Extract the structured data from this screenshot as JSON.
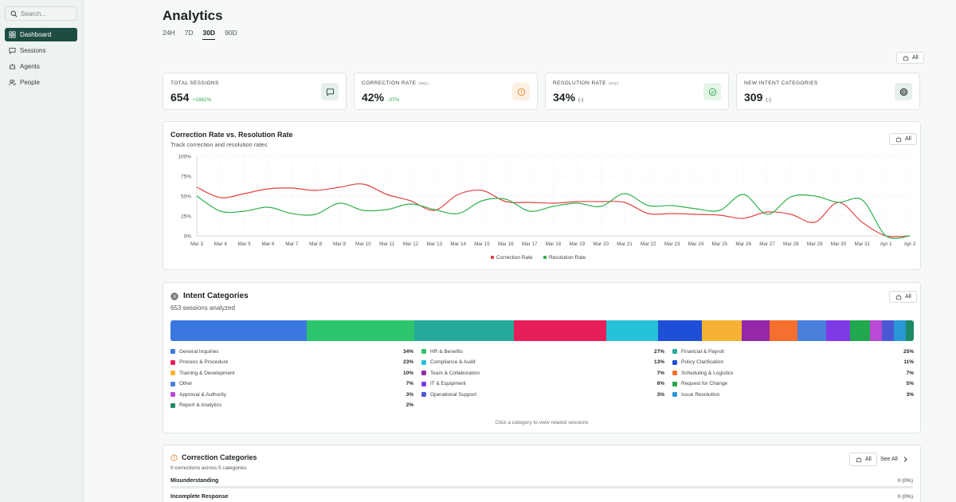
{
  "sidebar": {
    "search_placeholder": "Search...",
    "items": [
      {
        "label": "Dashboard",
        "icon": "grid-icon",
        "active": true
      },
      {
        "label": "Sessions",
        "icon": "chat-icon",
        "active": false
      },
      {
        "label": "Agents",
        "icon": "bot-icon",
        "active": false
      },
      {
        "label": "People",
        "icon": "users-icon",
        "active": false
      }
    ]
  },
  "header": {
    "title": "Analytics",
    "ranges": [
      "24H",
      "7D",
      "30D",
      "90D"
    ],
    "active_range": "30D",
    "filter_label": "All"
  },
  "kpis": [
    {
      "label": "TOTAL SESSIONS",
      "avg": "",
      "value": "654",
      "delta": "+1882%",
      "delta_color": "#2fa84f",
      "icon": "message-icon",
      "icon_bg": "#e6efec",
      "icon_color": "#2c4a42"
    },
    {
      "label": "CORRECTION RATE",
      "avg": "(avg.)",
      "value": "42%",
      "delta": "-37%",
      "delta_color": "#2fa84f",
      "icon": "alert-circle-icon",
      "icon_bg": "#fdf0e2",
      "icon_color": "#e08a2c"
    },
    {
      "label": "RESOLUTION RATE",
      "avg": "(avg.)",
      "value": "34%",
      "delta": "(-)",
      "delta_color": "#3b4743",
      "icon": "check-circle-icon",
      "icon_bg": "#e5f4e8",
      "icon_color": "#2fa84f"
    },
    {
      "label": "NEW INTENT CATEGORIES",
      "avg": "",
      "value": "309",
      "delta": "(-)",
      "delta_color": "#3b4743",
      "icon": "target-icon",
      "icon_bg": "#e6efec",
      "icon_color": "#1a2421"
    }
  ],
  "rate_chart": {
    "title": "Correction Rate vs. Resolution Rate",
    "subtitle": "Track correction and resolution rates",
    "filter_label": "All",
    "chart_data": {
      "type": "line",
      "title": "Correction Rate vs. Resolution Rate",
      "x": [
        "Mar 3",
        "Mar 4",
        "Mar 5",
        "Mar 6",
        "Mar 7",
        "Mar 8",
        "Mar 9",
        "Mar 10",
        "Mar 11",
        "Mar 12",
        "Mar 13",
        "Mar 14",
        "Mar 15",
        "Mar 16",
        "Mar 17",
        "Mar 18",
        "Mar 19",
        "Mar 20",
        "Mar 21",
        "Mar 22",
        "Mar 23",
        "Mar 24",
        "Mar 25",
        "Mar 26",
        "Mar 27",
        "Mar 28",
        "Mar 29",
        "Mar 30",
        "Mar 31",
        "Apr 1",
        "Apr 2"
      ],
      "y_ticks": [
        "0%",
        "25%",
        "50%",
        "75%",
        "100%"
      ],
      "ylim": [
        0,
        100
      ],
      "grid": true,
      "legend_position": "bottom-center",
      "series": [
        {
          "name": "Correction Rate",
          "color": "#e04444",
          "values": [
            61,
            48,
            53,
            59,
            60,
            57,
            61,
            65,
            52,
            44,
            32,
            52,
            57,
            43,
            42,
            41,
            43,
            43,
            42,
            28,
            28,
            27,
            26,
            22,
            30,
            27,
            17,
            42,
            17,
            0,
            0
          ]
        },
        {
          "name": "Resolution Rate",
          "color": "#2fb14f",
          "values": [
            50,
            31,
            31,
            36,
            28,
            27,
            41,
            32,
            33,
            40,
            33,
            28,
            44,
            46,
            31,
            37,
            41,
            37,
            53,
            38,
            38,
            34,
            32,
            52,
            27,
            49,
            50,
            42,
            45,
            0,
            0
          ]
        }
      ]
    }
  },
  "intents": {
    "title": "Intent Categories",
    "subtitle": "653 sessions analyzed",
    "filter_label": "All",
    "hint": "Click a category to view related sessions",
    "chart_data": {
      "type": "bar",
      "orientation": "stacked-horizontal",
      "categories": [
        "General Inquiries",
        "HR & Benefits",
        "Financial & Payroll",
        "Process & Procedure",
        "Compliance & Audit",
        "Policy Clarification",
        "Training & Development",
        "Team & Collaboration",
        "Scheduling & Logistics",
        "Other",
        "IT & Equipment",
        "Request for Change",
        "Approval & Authority",
        "Operational Support",
        "Issue Resolution",
        "Report & Analytics"
      ],
      "values": [
        34,
        27,
        25,
        23,
        13,
        11,
        10,
        7,
        7,
        7,
        6,
        5,
        3,
        3,
        3,
        2
      ],
      "labels": [
        "34%",
        "27%",
        "25%",
        "23%",
        "13%",
        "11%",
        "10%",
        "7%",
        "7%",
        "7%",
        "6%",
        "5%",
        "3%",
        "3%",
        "3%",
        "2%"
      ],
      "colors": [
        "#3a78e0",
        "#2dc46e",
        "#25a99a",
        "#e61e5a",
        "#26c2d9",
        "#1f4fd6",
        "#f6b233",
        "#9428a8",
        "#f56f2e",
        "#4a7fdc",
        "#7e3ae6",
        "#21a84d",
        "#b84ad6",
        "#4a59d3",
        "#2a97d6",
        "#1c8a64"
      ]
    }
  },
  "corrections": {
    "title": "Correction Categories",
    "subtitle": "0 corrections across 5 categories",
    "filter_label": "All",
    "see_all": "See All",
    "rows": [
      {
        "label": "Misunderstanding",
        "value": "0 (0%)"
      },
      {
        "label": "Incomplete Response",
        "value": "0 (0%)"
      }
    ]
  }
}
